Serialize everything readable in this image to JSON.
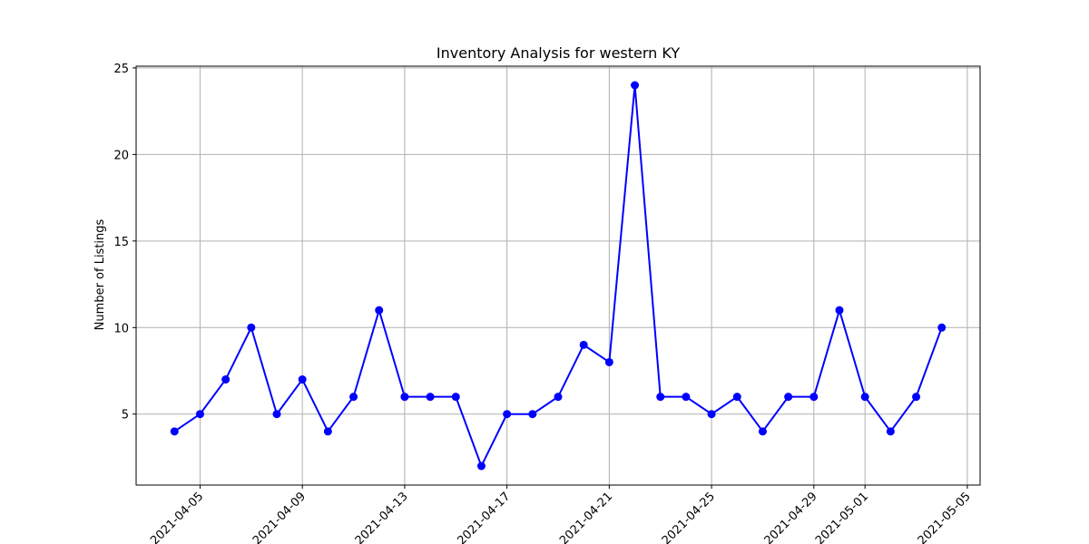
{
  "chart_data": {
    "type": "line",
    "title": "Inventory Analysis for western KY",
    "xlabel": "",
    "ylabel": "Number of Listings",
    "grid": true,
    "series": [
      {
        "name": "Listings",
        "color": "#0000ff",
        "marker": "circle",
        "x": [
          "2021-04-04",
          "2021-04-05",
          "2021-04-06",
          "2021-04-07",
          "2021-04-08",
          "2021-04-09",
          "2021-04-10",
          "2021-04-11",
          "2021-04-12",
          "2021-04-13",
          "2021-04-14",
          "2021-04-15",
          "2021-04-16",
          "2021-04-17",
          "2021-04-18",
          "2021-04-19",
          "2021-04-20",
          "2021-04-21",
          "2021-04-22",
          "2021-04-23",
          "2021-04-24",
          "2021-04-25",
          "2021-04-26",
          "2021-04-27",
          "2021-04-28",
          "2021-04-29",
          "2021-04-30",
          "2021-05-01",
          "2021-05-02",
          "2021-05-03",
          "2021-05-04"
        ],
        "values": [
          4,
          5,
          7,
          10,
          5,
          7,
          4,
          6,
          11,
          6,
          6,
          6,
          2,
          5,
          5,
          6,
          9,
          8,
          24,
          6,
          6,
          5,
          6,
          4,
          6,
          6,
          11,
          6,
          4,
          6,
          10
        ]
      }
    ],
    "xlim": [
      "2021-04-02.5",
      "2021-05-05.5"
    ],
    "ylim": [
      0.9,
      25.1
    ],
    "x_ticks": [
      "2021-04-05",
      "2021-04-09",
      "2021-04-13",
      "2021-04-17",
      "2021-04-21",
      "2021-04-25",
      "2021-04-29",
      "2021-05-01",
      "2021-05-05"
    ],
    "y_ticks": [
      5,
      10,
      15,
      20,
      25
    ]
  }
}
